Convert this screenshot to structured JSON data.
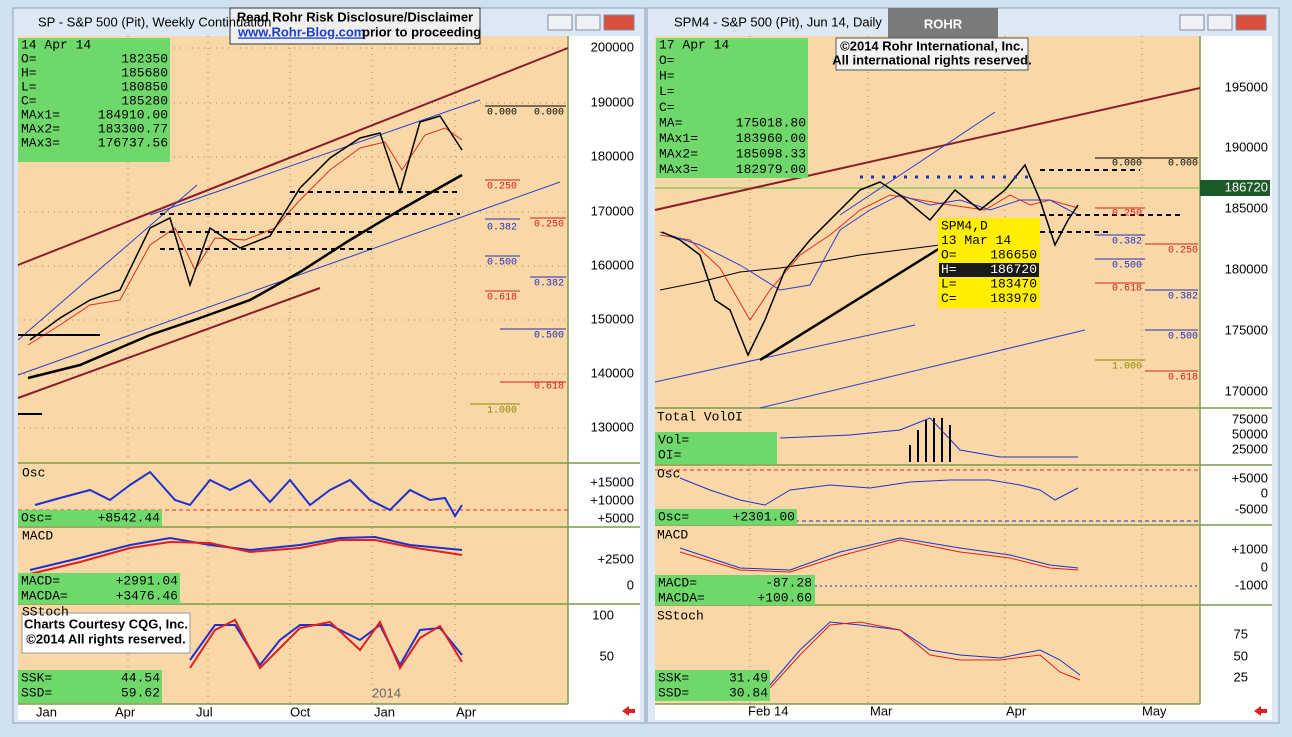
{
  "banner": {
    "title": "Read Rohr Risk Disclosure/Disclaimer",
    "link": "www.Rohr-Blog.com",
    "after": "prior to proceeding"
  },
  "logo": "ROHR",
  "copyright": [
    "©2014  Rohr International, Inc.",
    "All international rights reserved."
  ],
  "left": {
    "window_title": "SP - S&P 500 (Pit), Weekly Continuation",
    "info": [
      [
        "14 Apr 14",
        ""
      ],
      [
        "O=",
        "182350"
      ],
      [
        "H=",
        "185680"
      ],
      [
        "L=",
        "180850"
      ],
      [
        "C=",
        "185280"
      ],
      [
        "MAx1=",
        "184910.00"
      ],
      [
        "MAx2=",
        "183300.77"
      ],
      [
        "MAx3=",
        "176737.56"
      ]
    ],
    "price_axis": [
      "200000",
      "190000",
      "180000",
      "170000",
      "160000",
      "150000",
      "140000",
      "130000"
    ],
    "fib": [
      {
        "label": "0.000",
        "color": "#000000"
      },
      {
        "label": "0.000",
        "color": "#000000"
      },
      {
        "label": "0.250",
        "color": "#d42020"
      },
      {
        "label": "0.382",
        "color": "#2030c0"
      },
      {
        "label": "0.250",
        "color": "#d42020"
      },
      {
        "label": "0.500",
        "color": "#2030c0"
      },
      {
        "label": "0.382",
        "color": "#2030c0"
      },
      {
        "label": "0.618",
        "color": "#d42020"
      },
      {
        "label": "0.500",
        "color": "#2030c0"
      },
      {
        "label": "0.618",
        "color": "#d42020"
      },
      {
        "label": "1.000",
        "color": "#8a8a00"
      }
    ],
    "osc": {
      "title": "Osc",
      "rows": [
        [
          "Osc=",
          "+8542.44"
        ]
      ],
      "axis": [
        "+15000",
        "+10000",
        "+5000"
      ]
    },
    "macd": {
      "title": "MACD",
      "rows": [
        [
          "MACD=",
          "+2991.04"
        ],
        [
          "MACDA=",
          "+3476.46"
        ]
      ],
      "axis": [
        "+2500",
        "0"
      ]
    },
    "sstoch": {
      "title": "SStoch",
      "rows": [
        [
          "SSK=",
          "44.54"
        ],
        [
          "SSD=",
          "59.62"
        ]
      ],
      "axis": [
        "100",
        "50"
      ],
      "year": "2014"
    },
    "credit": [
      "Charts Courtesy CQG, Inc.",
      "©2014 All rights reserved."
    ],
    "x_axis": [
      "Jan",
      "Apr",
      "Jul",
      "Oct",
      "Jan",
      "Apr"
    ]
  },
  "right": {
    "window_title": "SPM4 - S&P 500 (Pit), Jun 14, Daily",
    "info": [
      [
        "17 Apr 14",
        ""
      ],
      [
        "O=",
        ""
      ],
      [
        "H=",
        ""
      ],
      [
        "L=",
        ""
      ],
      [
        "C=",
        ""
      ],
      [
        "MA=",
        "175018.80"
      ],
      [
        "MAx1=",
        "183960.00"
      ],
      [
        "MAx2=",
        "185098.33"
      ],
      [
        "MAx3=",
        "182979.00"
      ]
    ],
    "price_axis": [
      "195000",
      "190000",
      "185000",
      "180000",
      "175000",
      "170000"
    ],
    "last_price": "186720",
    "fib": [
      {
        "label": "0.000",
        "color": "#000000"
      },
      {
        "label": "0.000",
        "color": "#000000"
      },
      {
        "label": "0.250",
        "color": "#d42020"
      },
      {
        "label": "0.382",
        "color": "#2030c0"
      },
      {
        "label": "0.250",
        "color": "#d42020"
      },
      {
        "label": "0.500",
        "color": "#2030c0"
      },
      {
        "label": "0.618",
        "color": "#d42020"
      },
      {
        "label": "0.382",
        "color": "#2030c0"
      },
      {
        "label": "0.500",
        "color": "#2030c0"
      },
      {
        "label": "1.000",
        "color": "#8a8a00"
      },
      {
        "label": "0.618",
        "color": "#d42020"
      }
    ],
    "tooltip": [
      [
        "SPM4,D",
        ""
      ],
      [
        "13 Mar 14",
        ""
      ],
      [
        "O=",
        "186650"
      ],
      [
        "H=",
        "186720"
      ],
      [
        "L=",
        "183470"
      ],
      [
        "C=",
        "183970"
      ]
    ],
    "volume": {
      "title": "Total VolOI",
      "rows": [
        [
          "Vol=",
          ""
        ],
        [
          "OI=",
          ""
        ]
      ],
      "axis": [
        "75000",
        "50000",
        "25000"
      ]
    },
    "osc": {
      "title": "Osc",
      "rows": [
        [
          "Osc=",
          "+2301.00"
        ]
      ],
      "axis": [
        "+5000",
        "0",
        "-5000"
      ]
    },
    "macd": {
      "title": "MACD",
      "rows": [
        [
          "MACD=",
          "-87.28"
        ],
        [
          "MACDA=",
          "+100.60"
        ]
      ],
      "axis": [
        "+1000",
        "0",
        "-1000"
      ]
    },
    "sstoch": {
      "title": "SStoch",
      "rows": [
        [
          "SSK=",
          "31.49"
        ],
        [
          "SSD=",
          "30.84"
        ]
      ],
      "axis": [
        "75",
        "50",
        "25"
      ]
    },
    "x_axis": [
      "Feb 14",
      "Mar",
      "Apr",
      "May"
    ]
  }
}
